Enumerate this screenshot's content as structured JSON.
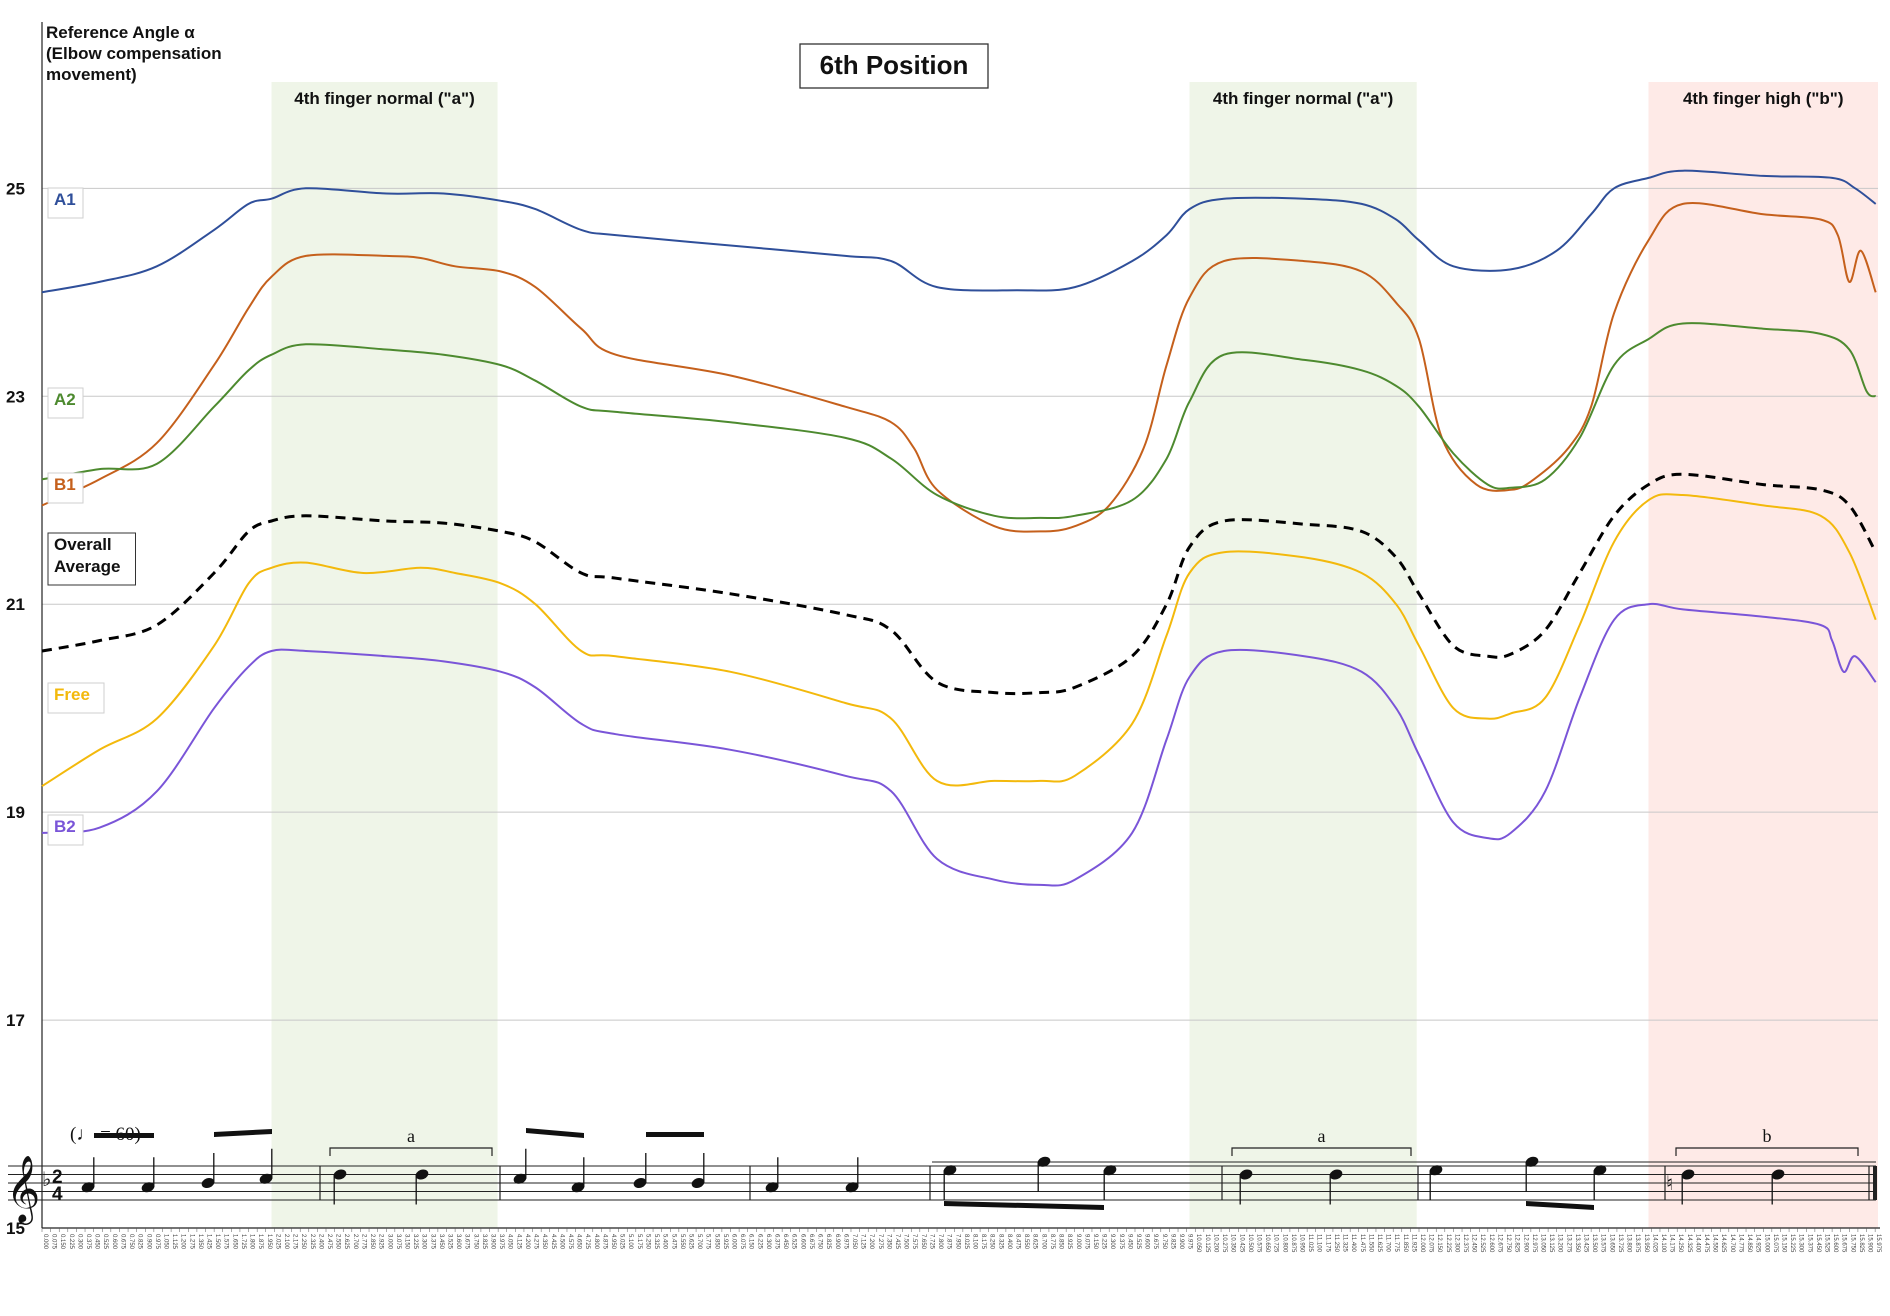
{
  "chart_data": {
    "type": "line",
    "title": "6th Position",
    "ylabel": "Reference Angle α\n(Elbow compensation\nmovement)",
    "xlabel": "",
    "ylim": [
      15,
      26.6
    ],
    "xlim": [
      0,
      16.0
    ],
    "yticks": [
      15,
      17,
      19,
      21,
      23,
      25
    ],
    "xticks_step": 0.075,
    "grid": "horizontal",
    "bands": [
      {
        "label": "4th finger normal (\"a\")",
        "x0": 2.0,
        "x1": 3.97,
        "color": "#e9f1e0"
      },
      {
        "label": "4th finger normal (\"a\")",
        "x0": 10.0,
        "x1": 11.98,
        "color": "#e9f1e0"
      },
      {
        "label": "4th finger high (\"b\")",
        "x0": 14.0,
        "x1": 16.0,
        "color": "#fde3df"
      }
    ],
    "series": [
      {
        "name": "A1",
        "color": "#2f4f9a",
        "dashed": false,
        "points": [
          [
            0,
            24.0
          ],
          [
            0.5,
            24.1
          ],
          [
            1.0,
            24.25
          ],
          [
            1.5,
            24.6
          ],
          [
            1.8,
            24.85
          ],
          [
            2.0,
            24.9
          ],
          [
            2.3,
            25.0
          ],
          [
            3.0,
            24.95
          ],
          [
            3.5,
            24.95
          ],
          [
            4.0,
            24.88
          ],
          [
            4.3,
            24.8
          ],
          [
            4.7,
            24.6
          ],
          [
            5.0,
            24.55
          ],
          [
            6.0,
            24.45
          ],
          [
            7.0,
            24.35
          ],
          [
            7.4,
            24.3
          ],
          [
            7.8,
            24.05
          ],
          [
            8.5,
            24.02
          ],
          [
            9.0,
            24.05
          ],
          [
            9.5,
            24.3
          ],
          [
            9.8,
            24.55
          ],
          [
            10.0,
            24.8
          ],
          [
            10.3,
            24.9
          ],
          [
            11.0,
            24.9
          ],
          [
            11.5,
            24.85
          ],
          [
            11.8,
            24.7
          ],
          [
            12.0,
            24.5
          ],
          [
            12.3,
            24.25
          ],
          [
            12.8,
            24.22
          ],
          [
            13.2,
            24.4
          ],
          [
            13.5,
            24.75
          ],
          [
            13.7,
            25.0
          ],
          [
            14.0,
            25.1
          ],
          [
            14.3,
            25.17
          ],
          [
            15.0,
            25.12
          ],
          [
            15.6,
            25.1
          ],
          [
            15.8,
            25.0
          ],
          [
            15.98,
            24.85
          ]
        ]
      },
      {
        "name": "B1",
        "color": "#c5601c",
        "dashed": false,
        "points": [
          [
            0,
            21.95
          ],
          [
            0.5,
            22.2
          ],
          [
            1.0,
            22.55
          ],
          [
            1.5,
            23.3
          ],
          [
            1.8,
            23.85
          ],
          [
            2.0,
            24.15
          ],
          [
            2.3,
            24.35
          ],
          [
            3.0,
            24.35
          ],
          [
            3.3,
            24.33
          ],
          [
            3.6,
            24.25
          ],
          [
            4.0,
            24.2
          ],
          [
            4.3,
            24.05
          ],
          [
            4.7,
            23.65
          ],
          [
            5.0,
            23.4
          ],
          [
            6.0,
            23.2
          ],
          [
            7.0,
            22.9
          ],
          [
            7.4,
            22.75
          ],
          [
            7.6,
            22.5
          ],
          [
            7.8,
            22.1
          ],
          [
            8.3,
            21.75
          ],
          [
            8.7,
            21.7
          ],
          [
            9.0,
            21.75
          ],
          [
            9.3,
            21.95
          ],
          [
            9.6,
            22.5
          ],
          [
            9.8,
            23.3
          ],
          [
            10.0,
            23.95
          ],
          [
            10.3,
            24.3
          ],
          [
            11.0,
            24.3
          ],
          [
            11.5,
            24.2
          ],
          [
            11.8,
            23.9
          ],
          [
            12.0,
            23.55
          ],
          [
            12.2,
            22.6
          ],
          [
            12.5,
            22.15
          ],
          [
            12.8,
            22.1
          ],
          [
            13.0,
            22.2
          ],
          [
            13.3,
            22.5
          ],
          [
            13.5,
            22.9
          ],
          [
            13.7,
            23.8
          ],
          [
            14.0,
            24.5
          ],
          [
            14.3,
            24.85
          ],
          [
            15.0,
            24.75
          ],
          [
            15.5,
            24.7
          ],
          [
            15.65,
            24.55
          ],
          [
            15.75,
            24.1
          ],
          [
            15.85,
            24.4
          ],
          [
            15.98,
            24.0
          ]
        ]
      },
      {
        "name": "A2",
        "color": "#4d8a2f",
        "dashed": false,
        "points": [
          [
            0,
            22.2
          ],
          [
            0.5,
            22.3
          ],
          [
            1.0,
            22.35
          ],
          [
            1.5,
            22.9
          ],
          [
            1.8,
            23.25
          ],
          [
            2.0,
            23.4
          ],
          [
            2.3,
            23.5
          ],
          [
            3.0,
            23.45
          ],
          [
            3.5,
            23.4
          ],
          [
            4.0,
            23.3
          ],
          [
            4.3,
            23.15
          ],
          [
            4.7,
            22.9
          ],
          [
            5.0,
            22.85
          ],
          [
            6.0,
            22.75
          ],
          [
            7.0,
            22.6
          ],
          [
            7.4,
            22.4
          ],
          [
            7.8,
            22.05
          ],
          [
            8.3,
            21.85
          ],
          [
            8.7,
            21.83
          ],
          [
            9.0,
            21.85
          ],
          [
            9.5,
            22.0
          ],
          [
            9.8,
            22.4
          ],
          [
            10.0,
            22.95
          ],
          [
            10.3,
            23.4
          ],
          [
            11.0,
            23.35
          ],
          [
            11.5,
            23.25
          ],
          [
            11.8,
            23.1
          ],
          [
            12.0,
            22.9
          ],
          [
            12.3,
            22.45
          ],
          [
            12.6,
            22.15
          ],
          [
            12.8,
            22.12
          ],
          [
            13.1,
            22.2
          ],
          [
            13.4,
            22.6
          ],
          [
            13.7,
            23.3
          ],
          [
            14.0,
            23.55
          ],
          [
            14.3,
            23.7
          ],
          [
            15.0,
            23.65
          ],
          [
            15.5,
            23.6
          ],
          [
            15.75,
            23.45
          ],
          [
            15.9,
            23.05
          ],
          [
            15.98,
            23.0
          ]
        ]
      },
      {
        "name": "Overall Average",
        "color": "#000000",
        "dashed": true,
        "points": [
          [
            0,
            20.55
          ],
          [
            0.5,
            20.65
          ],
          [
            1.0,
            20.8
          ],
          [
            1.5,
            21.3
          ],
          [
            1.8,
            21.7
          ],
          [
            2.0,
            21.8
          ],
          [
            2.3,
            21.85
          ],
          [
            3.0,
            21.8
          ],
          [
            3.5,
            21.78
          ],
          [
            4.0,
            21.7
          ],
          [
            4.3,
            21.6
          ],
          [
            4.7,
            21.3
          ],
          [
            5.0,
            21.25
          ],
          [
            6.0,
            21.1
          ],
          [
            7.0,
            20.9
          ],
          [
            7.4,
            20.75
          ],
          [
            7.8,
            20.25
          ],
          [
            8.3,
            20.15
          ],
          [
            8.7,
            20.15
          ],
          [
            9.0,
            20.2
          ],
          [
            9.5,
            20.5
          ],
          [
            9.8,
            21.0
          ],
          [
            10.0,
            21.55
          ],
          [
            10.3,
            21.8
          ],
          [
            11.0,
            21.77
          ],
          [
            11.5,
            21.7
          ],
          [
            11.8,
            21.45
          ],
          [
            12.0,
            21.1
          ],
          [
            12.3,
            20.6
          ],
          [
            12.6,
            20.5
          ],
          [
            12.8,
            20.52
          ],
          [
            13.1,
            20.75
          ],
          [
            13.4,
            21.3
          ],
          [
            13.7,
            21.85
          ],
          [
            14.0,
            22.15
          ],
          [
            14.3,
            22.25
          ],
          [
            15.0,
            22.15
          ],
          [
            15.5,
            22.1
          ],
          [
            15.75,
            21.95
          ],
          [
            15.98,
            21.5
          ]
        ]
      },
      {
        "name": "Free",
        "color": "#f3b90c",
        "dashed": false,
        "points": [
          [
            0,
            19.25
          ],
          [
            0.5,
            19.6
          ],
          [
            1.0,
            19.9
          ],
          [
            1.5,
            20.6
          ],
          [
            1.8,
            21.2
          ],
          [
            2.0,
            21.35
          ],
          [
            2.3,
            21.4
          ],
          [
            2.8,
            21.3
          ],
          [
            3.3,
            21.35
          ],
          [
            3.6,
            21.3
          ],
          [
            4.0,
            21.2
          ],
          [
            4.3,
            21.0
          ],
          [
            4.7,
            20.55
          ],
          [
            5.0,
            20.5
          ],
          [
            6.0,
            20.35
          ],
          [
            7.0,
            20.05
          ],
          [
            7.4,
            19.9
          ],
          [
            7.8,
            19.3
          ],
          [
            8.3,
            19.3
          ],
          [
            8.7,
            19.3
          ],
          [
            9.0,
            19.35
          ],
          [
            9.5,
            19.85
          ],
          [
            9.8,
            20.7
          ],
          [
            10.0,
            21.3
          ],
          [
            10.3,
            21.5
          ],
          [
            11.0,
            21.45
          ],
          [
            11.5,
            21.3
          ],
          [
            11.8,
            21.0
          ],
          [
            12.0,
            20.6
          ],
          [
            12.3,
            20.0
          ],
          [
            12.6,
            19.9
          ],
          [
            12.8,
            19.95
          ],
          [
            13.1,
            20.1
          ],
          [
            13.4,
            20.8
          ],
          [
            13.7,
            21.6
          ],
          [
            14.0,
            22.0
          ],
          [
            14.3,
            22.05
          ],
          [
            15.0,
            21.95
          ],
          [
            15.5,
            21.85
          ],
          [
            15.75,
            21.5
          ],
          [
            15.98,
            20.85
          ]
        ]
      },
      {
        "name": "B2",
        "color": "#7a55d8",
        "dashed": false,
        "points": [
          [
            0,
            18.8
          ],
          [
            0.5,
            18.85
          ],
          [
            1.0,
            19.2
          ],
          [
            1.5,
            20.0
          ],
          [
            1.8,
            20.4
          ],
          [
            2.0,
            20.55
          ],
          [
            2.3,
            20.55
          ],
          [
            3.0,
            20.5
          ],
          [
            3.5,
            20.45
          ],
          [
            4.0,
            20.35
          ],
          [
            4.3,
            20.2
          ],
          [
            4.7,
            19.85
          ],
          [
            5.0,
            19.75
          ],
          [
            6.0,
            19.6
          ],
          [
            7.0,
            19.35
          ],
          [
            7.4,
            19.2
          ],
          [
            7.8,
            18.55
          ],
          [
            8.3,
            18.35
          ],
          [
            8.7,
            18.3
          ],
          [
            9.0,
            18.35
          ],
          [
            9.5,
            18.8
          ],
          [
            9.8,
            19.7
          ],
          [
            10.0,
            20.3
          ],
          [
            10.3,
            20.55
          ],
          [
            11.0,
            20.5
          ],
          [
            11.5,
            20.35
          ],
          [
            11.8,
            20.0
          ],
          [
            12.0,
            19.55
          ],
          [
            12.3,
            18.9
          ],
          [
            12.6,
            18.75
          ],
          [
            12.8,
            18.8
          ],
          [
            13.1,
            19.2
          ],
          [
            13.4,
            20.1
          ],
          [
            13.7,
            20.85
          ],
          [
            14.0,
            21.0
          ],
          [
            14.3,
            20.95
          ],
          [
            15.0,
            20.88
          ],
          [
            15.5,
            20.8
          ],
          [
            15.6,
            20.65
          ],
          [
            15.7,
            20.35
          ],
          [
            15.8,
            20.5
          ],
          [
            15.98,
            20.25
          ]
        ]
      }
    ],
    "legend": [
      {
        "label": "A1",
        "series": "A1"
      },
      {
        "label": "A2",
        "series": "A2"
      },
      {
        "label": "B1",
        "series": "B1"
      },
      {
        "label": "Overall\nAverage",
        "series": "Overall Average"
      },
      {
        "label": "Free",
        "series": "Free"
      },
      {
        "label": "B2",
        "series": "B2"
      }
    ],
    "notation": {
      "tempo": "(♩ = 60)",
      "brackets": [
        "a",
        "a",
        "b"
      ]
    }
  }
}
